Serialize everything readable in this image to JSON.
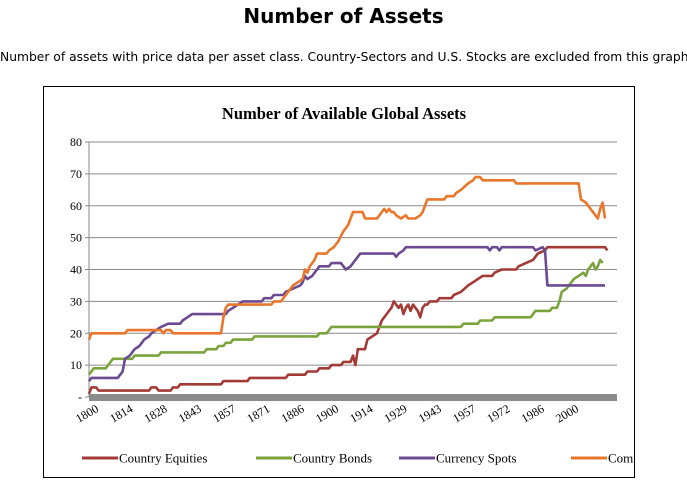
{
  "page": {
    "title": "Number of Assets",
    "subtitle": "Number of assets with price data per asset class. Country-Sectors and U.S. Stocks are excluded from this graph."
  },
  "chart_data": {
    "type": "line",
    "title": "Number of Available Global Assets",
    "xlabel": "",
    "ylabel": "",
    "xlim": [
      1800,
      2020
    ],
    "ylim": [
      0,
      80
    ],
    "y_ticks": [
      0,
      10,
      20,
      30,
      40,
      50,
      60,
      70,
      80
    ],
    "y_tick_labels": [
      "-",
      "10",
      "20",
      "30",
      "40",
      "50",
      "60",
      "70",
      "80"
    ],
    "x_tick_labels": [
      "1800",
      "1814",
      "1828",
      "1843",
      "1857",
      "1871",
      "1886",
      "1900",
      "1914",
      "1929",
      "1943",
      "1957",
      "1972",
      "1986",
      "2000"
    ],
    "grid": true,
    "legend_position": "bottom",
    "series": [
      {
        "name": "Country Equities",
        "color": "#a33a36",
        "points": [
          [
            1800,
            1
          ],
          [
            1801,
            3
          ],
          [
            1803,
            3
          ],
          [
            1804,
            2
          ],
          [
            1825,
            2
          ],
          [
            1826,
            3
          ],
          [
            1828,
            3
          ],
          [
            1829,
            2
          ],
          [
            1834,
            2
          ],
          [
            1835,
            3
          ],
          [
            1837,
            3
          ],
          [
            1838,
            4
          ],
          [
            1855,
            4
          ],
          [
            1856,
            5
          ],
          [
            1866,
            5
          ],
          [
            1867,
            6
          ],
          [
            1882,
            6
          ],
          [
            1883,
            7
          ],
          [
            1890,
            7
          ],
          [
            1891,
            8
          ],
          [
            1895,
            8
          ],
          [
            1896,
            9
          ],
          [
            1900,
            9
          ],
          [
            1901,
            10
          ],
          [
            1905,
            10
          ],
          [
            1906,
            11
          ],
          [
            1909,
            11
          ],
          [
            1910,
            13
          ],
          [
            1911,
            10
          ],
          [
            1912,
            15
          ],
          [
            1915,
            15
          ],
          [
            1916,
            18
          ],
          [
            1918,
            19
          ],
          [
            1920,
            20
          ],
          [
            1922,
            24
          ],
          [
            1924,
            26
          ],
          [
            1925,
            27
          ],
          [
            1926,
            28
          ],
          [
            1927,
            30
          ],
          [
            1928,
            29
          ],
          [
            1929,
            28
          ],
          [
            1930,
            29
          ],
          [
            1931,
            26
          ],
          [
            1932,
            28
          ],
          [
            1933,
            29
          ],
          [
            1934,
            27
          ],
          [
            1935,
            29
          ],
          [
            1937,
            27
          ],
          [
            1938,
            25
          ],
          [
            1939,
            28
          ],
          [
            1940,
            29
          ],
          [
            1941,
            29
          ],
          [
            1942,
            30
          ],
          [
            1945,
            30
          ],
          [
            1946,
            31
          ],
          [
            1951,
            31
          ],
          [
            1952,
            32
          ],
          [
            1955,
            33
          ],
          [
            1958,
            35
          ],
          [
            1960,
            36
          ],
          [
            1962,
            37
          ],
          [
            1964,
            38
          ],
          [
            1968,
            38
          ],
          [
            1969,
            39
          ],
          [
            1972,
            40
          ],
          [
            1978,
            40
          ],
          [
            1979,
            41
          ],
          [
            1982,
            42
          ],
          [
            1985,
            43
          ],
          [
            1987,
            45
          ],
          [
            1990,
            46
          ],
          [
            1991,
            47
          ],
          [
            2015,
            47
          ],
          [
            2016,
            46
          ]
        ]
      },
      {
        "name": "Country Bonds",
        "color": "#7aa33c",
        "points": [
          [
            1800,
            7
          ],
          [
            1801,
            8
          ],
          [
            1802,
            9
          ],
          [
            1807,
            9
          ],
          [
            1808,
            10
          ],
          [
            1809,
            11
          ],
          [
            1810,
            12
          ],
          [
            1818,
            12
          ],
          [
            1819,
            13
          ],
          [
            1829,
            13
          ],
          [
            1830,
            14
          ],
          [
            1848,
            14
          ],
          [
            1849,
            15
          ],
          [
            1853,
            15
          ],
          [
            1854,
            16
          ],
          [
            1856,
            16
          ],
          [
            1857,
            17
          ],
          [
            1859,
            17
          ],
          [
            1860,
            18
          ],
          [
            1868,
            18
          ],
          [
            1869,
            19
          ],
          [
            1895,
            19
          ],
          [
            1896,
            20
          ],
          [
            1899,
            20
          ],
          [
            1900,
            21
          ],
          [
            1901,
            22
          ],
          [
            1955,
            22
          ],
          [
            1956,
            23
          ],
          [
            1962,
            23
          ],
          [
            1963,
            24
          ],
          [
            1968,
            24
          ],
          [
            1969,
            25
          ],
          [
            1984,
            25
          ],
          [
            1985,
            26
          ],
          [
            1986,
            27
          ],
          [
            1992,
            27
          ],
          [
            1993,
            28
          ],
          [
            1995,
            28
          ],
          [
            1996,
            30
          ],
          [
            1997,
            33
          ],
          [
            1999,
            34
          ],
          [
            2000,
            35
          ],
          [
            2002,
            37
          ],
          [
            2004,
            38
          ],
          [
            2006,
            39
          ],
          [
            2007,
            38
          ],
          [
            2008,
            40
          ],
          [
            2009,
            41
          ],
          [
            2010,
            42
          ],
          [
            2011,
            40
          ],
          [
            2012,
            41
          ],
          [
            2013,
            43
          ],
          [
            2014,
            42
          ]
        ]
      },
      {
        "name": "Currency Spots",
        "color": "#6b4a91",
        "points": [
          [
            1800,
            5
          ],
          [
            1801,
            6
          ],
          [
            1812,
            6
          ],
          [
            1813,
            7
          ],
          [
            1814,
            8
          ],
          [
            1815,
            12
          ],
          [
            1817,
            13
          ],
          [
            1819,
            15
          ],
          [
            1821,
            16
          ],
          [
            1823,
            18
          ],
          [
            1825,
            19
          ],
          [
            1826,
            20
          ],
          [
            1828,
            21
          ],
          [
            1830,
            22
          ],
          [
            1833,
            23
          ],
          [
            1838,
            23
          ],
          [
            1839,
            24
          ],
          [
            1841,
            25
          ],
          [
            1843,
            26
          ],
          [
            1857,
            26
          ],
          [
            1858,
            27
          ],
          [
            1860,
            28
          ],
          [
            1862,
            29
          ],
          [
            1864,
            30
          ],
          [
            1872,
            30
          ],
          [
            1873,
            31
          ],
          [
            1876,
            31
          ],
          [
            1877,
            32
          ],
          [
            1881,
            32
          ],
          [
            1882,
            33
          ],
          [
            1885,
            34
          ],
          [
            1888,
            35
          ],
          [
            1889,
            36
          ],
          [
            1890,
            38
          ],
          [
            1891,
            37
          ],
          [
            1893,
            38
          ],
          [
            1894,
            39
          ],
          [
            1895,
            40
          ],
          [
            1896,
            41
          ],
          [
            1900,
            41
          ],
          [
            1901,
            42
          ],
          [
            1905,
            42
          ],
          [
            1906,
            41
          ],
          [
            1907,
            40
          ],
          [
            1909,
            41
          ],
          [
            1910,
            42
          ],
          [
            1911,
            43
          ],
          [
            1912,
            44
          ],
          [
            1913,
            45
          ],
          [
            1927,
            45
          ],
          [
            1928,
            44
          ],
          [
            1929,
            45
          ],
          [
            1931,
            46
          ],
          [
            1932,
            47
          ],
          [
            1966,
            47
          ],
          [
            1967,
            46
          ],
          [
            1968,
            47
          ],
          [
            1970,
            47
          ],
          [
            1971,
            46
          ],
          [
            1972,
            47
          ],
          [
            1985,
            47
          ],
          [
            1986,
            46
          ],
          [
            1989,
            47
          ],
          [
            1990,
            46
          ],
          [
            1991,
            35
          ],
          [
            2015,
            35
          ]
        ]
      },
      {
        "name": "Commodities",
        "color": "#e9762b",
        "points": [
          [
            1800,
            18
          ],
          [
            1801,
            20
          ],
          [
            1815,
            20
          ],
          [
            1816,
            21
          ],
          [
            1830,
            21
          ],
          [
            1831,
            20
          ],
          [
            1832,
            21
          ],
          [
            1834,
            21
          ],
          [
            1835,
            20
          ],
          [
            1855,
            20
          ],
          [
            1856,
            25
          ],
          [
            1857,
            28
          ],
          [
            1858,
            29
          ],
          [
            1876,
            29
          ],
          [
            1877,
            30
          ],
          [
            1880,
            30
          ],
          [
            1881,
            31
          ],
          [
            1883,
            33
          ],
          [
            1885,
            35
          ],
          [
            1887,
            36
          ],
          [
            1889,
            37
          ],
          [
            1890,
            40
          ],
          [
            1891,
            39
          ],
          [
            1892,
            41
          ],
          [
            1894,
            43
          ],
          [
            1895,
            45
          ],
          [
            1899,
            45
          ],
          [
            1900,
            46
          ],
          [
            1902,
            47
          ],
          [
            1904,
            49
          ],
          [
            1906,
            52
          ],
          [
            1908,
            54
          ],
          [
            1909,
            56
          ],
          [
            1910,
            58
          ],
          [
            1914,
            58
          ],
          [
            1915,
            56
          ],
          [
            1920,
            56
          ],
          [
            1921,
            57
          ],
          [
            1922,
            58
          ],
          [
            1923,
            59
          ],
          [
            1924,
            58
          ],
          [
            1925,
            59
          ],
          [
            1926,
            58
          ],
          [
            1927,
            58
          ],
          [
            1928,
            57
          ],
          [
            1930,
            56
          ],
          [
            1932,
            57
          ],
          [
            1933,
            56
          ],
          [
            1936,
            56
          ],
          [
            1938,
            57
          ],
          [
            1939,
            58
          ],
          [
            1940,
            60
          ],
          [
            1941,
            62
          ],
          [
            1948,
            62
          ],
          [
            1949,
            63
          ],
          [
            1952,
            63
          ],
          [
            1953,
            64
          ],
          [
            1955,
            65
          ],
          [
            1958,
            67
          ],
          [
            1960,
            68
          ],
          [
            1961,
            69
          ],
          [
            1963,
            69
          ],
          [
            1964,
            68
          ],
          [
            1977,
            68
          ],
          [
            1978,
            67
          ],
          [
            2004,
            67
          ],
          [
            2005,
            62
          ],
          [
            2007,
            61
          ],
          [
            2008,
            60
          ],
          [
            2010,
            58
          ],
          [
            2012,
            56
          ],
          [
            2013,
            59
          ],
          [
            2014,
            61
          ],
          [
            2015,
            56
          ]
        ]
      }
    ]
  }
}
